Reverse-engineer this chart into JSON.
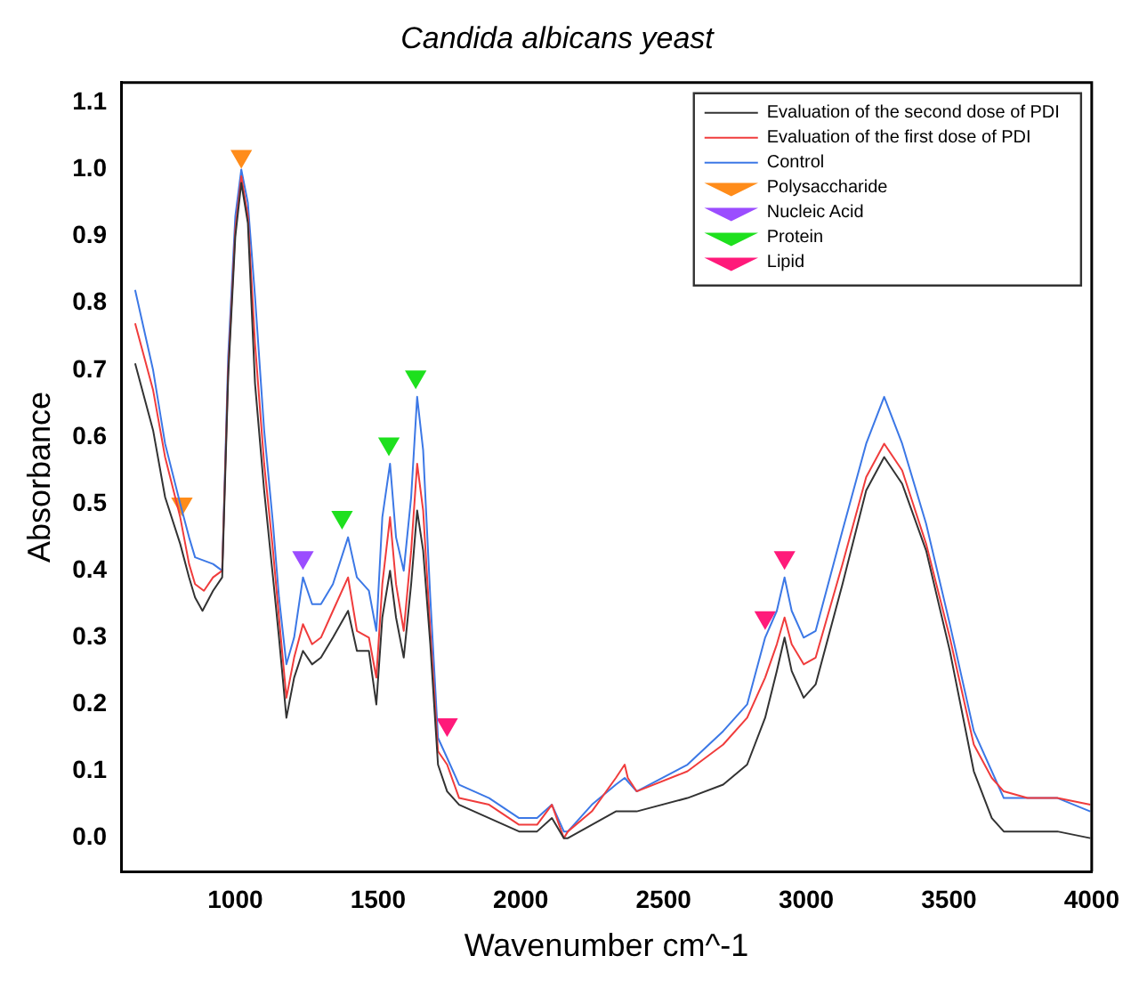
{
  "chart_data": {
    "type": "line",
    "title": "Candida albicans yeast",
    "xlabel": "Wavenumber cm^-1",
    "ylabel": "Absorbance",
    "xlim": [
      600,
      4000
    ],
    "xticks": [
      1000,
      1500,
      2000,
      2500,
      3000,
      3500,
      4000
    ],
    "ylim": [
      -0.05,
      1.13
    ],
    "yticks": [
      {
        "value": 0,
        "label": "0.0"
      },
      0.1,
      0.2,
      0.3,
      0.4,
      0.5,
      0.6,
      0.7,
      0.8,
      0.9,
      {
        "value": 1,
        "label": "1.0"
      },
      1.1
    ],
    "grid": false,
    "legend": "top right",
    "marker": "none",
    "series": [
      {
        "name": "Evaluation of the second dose of PDI",
        "color": "#333333",
        "x": [
          649,
          712,
          754,
          807,
          838,
          859,
          885,
          922,
          954,
          975,
          1000,
          1021,
          1044,
          1069,
          1101,
          1132,
          1153,
          1179,
          1206,
          1237,
          1269,
          1300,
          1342,
          1395,
          1426,
          1468,
          1494,
          1515,
          1542,
          1563,
          1590,
          1616,
          1637,
          1658,
          1683,
          1710,
          1742,
          1784,
          1889,
          1994,
          2057,
          2109,
          2151,
          2165,
          2249,
          2333,
          2406,
          2584,
          2709,
          2793,
          2856,
          2897,
          2924,
          2949,
          2991,
          3033,
          3127,
          3210,
          3273,
          3336,
          3420,
          3503,
          3587,
          3650,
          3692,
          3775,
          3880,
          3995
        ],
        "values": [
          0.71,
          0.61,
          0.51,
          0.44,
          0.39,
          0.36,
          0.34,
          0.37,
          0.39,
          0.69,
          0.9,
          0.98,
          0.92,
          0.68,
          0.52,
          0.39,
          0.3,
          0.18,
          0.24,
          0.28,
          0.26,
          0.27,
          0.3,
          0.34,
          0.28,
          0.28,
          0.2,
          0.33,
          0.4,
          0.33,
          0.27,
          0.38,
          0.49,
          0.43,
          0.29,
          0.11,
          0.07,
          0.05,
          0.03,
          0.01,
          0.01,
          0.03,
          0.0,
          0.0,
          0.02,
          0.04,
          0.04,
          0.06,
          0.08,
          0.11,
          0.18,
          0.25,
          0.3,
          0.25,
          0.21,
          0.23,
          0.38,
          0.52,
          0.57,
          0.53,
          0.43,
          0.28,
          0.1,
          0.03,
          0.01,
          0.01,
          0.01,
          0.0
        ]
      },
      {
        "name": "Evaluation of the first dose of PDI",
        "color": "#f03c3c",
        "x": [
          649,
          712,
          754,
          807,
          838,
          859,
          890,
          922,
          954,
          975,
          1000,
          1021,
          1044,
          1069,
          1101,
          1132,
          1153,
          1179,
          1206,
          1237,
          1269,
          1300,
          1342,
          1395,
          1426,
          1468,
          1494,
          1515,
          1542,
          1563,
          1590,
          1616,
          1637,
          1658,
          1683,
          1710,
          1742,
          1784,
          1889,
          1994,
          2057,
          2109,
          2151,
          2165,
          2249,
          2333,
          2364,
          2375,
          2406,
          2584,
          2709,
          2793,
          2856,
          2897,
          2924,
          2949,
          2991,
          3033,
          3127,
          3210,
          3273,
          3336,
          3420,
          3503,
          3587,
          3650,
          3692,
          3775,
          3880,
          3995
        ],
        "values": [
          0.77,
          0.67,
          0.57,
          0.48,
          0.41,
          0.38,
          0.37,
          0.39,
          0.4,
          0.7,
          0.91,
          0.99,
          0.93,
          0.74,
          0.56,
          0.43,
          0.33,
          0.21,
          0.27,
          0.32,
          0.29,
          0.3,
          0.34,
          0.39,
          0.31,
          0.3,
          0.24,
          0.38,
          0.48,
          0.38,
          0.31,
          0.43,
          0.56,
          0.49,
          0.31,
          0.13,
          0.11,
          0.06,
          0.05,
          0.02,
          0.02,
          0.05,
          0.0,
          0.01,
          0.04,
          0.09,
          0.11,
          0.09,
          0.07,
          0.1,
          0.14,
          0.18,
          0.24,
          0.29,
          0.33,
          0.29,
          0.26,
          0.27,
          0.41,
          0.54,
          0.59,
          0.55,
          0.44,
          0.3,
          0.14,
          0.09,
          0.07,
          0.06,
          0.06,
          0.05
        ]
      },
      {
        "name": "Control",
        "color": "#3c78e6",
        "x": [
          649,
          712,
          754,
          807,
          838,
          859,
          922,
          954,
          975,
          1000,
          1021,
          1044,
          1069,
          1101,
          1132,
          1153,
          1179,
          1206,
          1237,
          1269,
          1300,
          1342,
          1395,
          1426,
          1468,
          1494,
          1515,
          1542,
          1563,
          1590,
          1616,
          1637,
          1658,
          1683,
          1710,
          1742,
          1784,
          1889,
          1994,
          2057,
          2109,
          2151,
          2165,
          2249,
          2333,
          2364,
          2406,
          2584,
          2709,
          2793,
          2856,
          2897,
          2924,
          2949,
          2991,
          3033,
          3127,
          3210,
          3273,
          3336,
          3420,
          3503,
          3587,
          3650,
          3692,
          3775,
          3880,
          3995
        ],
        "values": [
          0.82,
          0.7,
          0.59,
          0.5,
          0.45,
          0.42,
          0.41,
          0.4,
          0.72,
          0.93,
          1.0,
          0.95,
          0.81,
          0.61,
          0.47,
          0.36,
          0.26,
          0.3,
          0.39,
          0.35,
          0.35,
          0.38,
          0.45,
          0.39,
          0.37,
          0.31,
          0.48,
          0.56,
          0.45,
          0.4,
          0.51,
          0.66,
          0.58,
          0.36,
          0.15,
          0.12,
          0.08,
          0.06,
          0.03,
          0.03,
          0.05,
          0.01,
          0.01,
          0.05,
          0.08,
          0.09,
          0.07,
          0.11,
          0.16,
          0.2,
          0.3,
          0.34,
          0.39,
          0.34,
          0.3,
          0.31,
          0.46,
          0.59,
          0.66,
          0.59,
          0.47,
          0.32,
          0.16,
          0.1,
          0.06,
          0.06,
          0.06,
          0.04
        ]
      },
      {
        "name": "Polysaccharide",
        "type": "scatter",
        "marker": "triangle",
        "color": "#ff8c1a",
        "x": [
          813,
          1021
        ],
        "values": [
          0.5,
          1.02
        ]
      },
      {
        "name": "Nucleic Acid",
        "type": "scatter",
        "marker": "triangle",
        "color": "#9b4dff",
        "x": [
          1237
        ],
        "values": [
          0.42
        ]
      },
      {
        "name": "Protein",
        "type": "scatter",
        "marker": "triangle",
        "color": "#1ee01e",
        "x": [
          1374,
          1538,
          1632
        ],
        "values": [
          0.48,
          0.59,
          0.69
        ]
      },
      {
        "name": "Lipid",
        "type": "scatter",
        "marker": "triangle",
        "color": "#ff1a7a",
        "x": [
          1742,
          2856,
          2924
        ],
        "values": [
          0.17,
          0.33,
          0.42
        ]
      }
    ]
  }
}
